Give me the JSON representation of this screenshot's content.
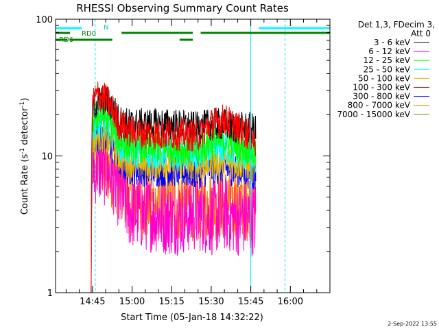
{
  "chart_data": {
    "type": "line",
    "title": "RHESSI Observing Summary Count Rates",
    "xlabel": "Start Time (05-Jan-18 14:32:22)",
    "ylabel_main": "Count Rate (s",
    "ylabel_sup1": "-1",
    "ylabel_mid": " detector",
    "ylabel_sup2": "-1",
    "ylabel_end": ")",
    "yscale": "log",
    "ylim": [
      1,
      100
    ],
    "y_ticks": [
      {
        "value": 1,
        "label": "1"
      },
      {
        "value": 10,
        "label": "10"
      },
      {
        "value": 100,
        "label": "100"
      }
    ],
    "xlim_min": [
      -4,
      100
    ],
    "x_ticks": [
      {
        "value": 10,
        "label": "14:45"
      },
      {
        "value": 25,
        "label": "15:00"
      },
      {
        "value": 40,
        "label": "15:15"
      },
      {
        "value": 55,
        "label": "15:30"
      },
      {
        "value": 70,
        "label": "15:45"
      },
      {
        "value": 85,
        "label": "16:00"
      }
    ],
    "legend_header": [
      "Det 1,3, FDecim 3,",
      "Att 0"
    ],
    "legend_placement": "right",
    "series": [
      {
        "name": "3 - 6 keV",
        "color": "#000000",
        "points": [
          [
            9.5,
            1
          ],
          [
            10,
            22
          ],
          [
            12,
            25
          ],
          [
            15,
            26
          ],
          [
            18,
            22
          ],
          [
            20,
            18
          ],
          [
            24,
            17
          ],
          [
            30,
            17
          ],
          [
            40,
            17
          ],
          [
            50,
            16
          ],
          [
            55,
            17
          ],
          [
            60,
            17
          ],
          [
            65,
            16
          ],
          [
            70,
            16
          ],
          [
            72,
            15
          ]
        ]
      },
      {
        "name": "6 - 12 keV",
        "color": "#ff00cc",
        "points": [
          [
            9.5,
            1
          ],
          [
            10,
            8
          ],
          [
            12,
            8.5
          ],
          [
            15,
            8
          ],
          [
            18,
            7
          ],
          [
            20,
            5.5
          ],
          [
            24,
            4
          ],
          [
            30,
            3.8
          ],
          [
            40,
            3.5
          ],
          [
            50,
            3.8
          ],
          [
            55,
            3.5
          ],
          [
            60,
            3.8
          ],
          [
            65,
            3.5
          ],
          [
            70,
            3.5
          ],
          [
            72,
            3.5
          ]
        ]
      },
      {
        "name": "12 - 25 keV",
        "color": "#00ff00",
        "points": [
          [
            9.5,
            1
          ],
          [
            10,
            18
          ],
          [
            12,
            20
          ],
          [
            15,
            19
          ],
          [
            18,
            16
          ],
          [
            20,
            13
          ],
          [
            24,
            12
          ],
          [
            30,
            11.5
          ],
          [
            40,
            11.5
          ],
          [
            50,
            11
          ],
          [
            55,
            12.5
          ],
          [
            60,
            13
          ],
          [
            65,
            12
          ],
          [
            70,
            11
          ],
          [
            72,
            10
          ]
        ]
      },
      {
        "name": "25 - 50 keV",
        "color": "#00ffff",
        "points": [
          [
            9.5,
            1
          ],
          [
            10,
            16
          ],
          [
            12,
            18
          ],
          [
            15,
            17
          ],
          [
            18,
            14.5
          ],
          [
            20,
            12
          ],
          [
            24,
            11
          ],
          [
            30,
            10.5
          ],
          [
            40,
            10.5
          ],
          [
            50,
            10
          ],
          [
            55,
            11
          ],
          [
            60,
            11.5
          ],
          [
            65,
            10.5
          ],
          [
            70,
            10
          ],
          [
            72,
            9
          ]
        ]
      },
      {
        "name": "50 - 100 keV",
        "color": "#e6b800",
        "points": [
          [
            9.5,
            1
          ],
          [
            10,
            13
          ],
          [
            12,
            14
          ],
          [
            15,
            13.5
          ],
          [
            18,
            11.5
          ],
          [
            20,
            10
          ],
          [
            24,
            9
          ],
          [
            30,
            8.8
          ],
          [
            40,
            8.8
          ],
          [
            50,
            8.5
          ],
          [
            55,
            9
          ],
          [
            60,
            9.2
          ],
          [
            65,
            8.8
          ],
          [
            70,
            8.5
          ],
          [
            72,
            7.8
          ]
        ]
      },
      {
        "name": "100 - 300 keV",
        "color": "#ff0000",
        "points": [
          [
            9.5,
            1
          ],
          [
            10,
            25
          ],
          [
            12,
            28
          ],
          [
            15,
            26
          ],
          [
            18,
            21
          ],
          [
            20,
            17
          ],
          [
            24,
            15
          ],
          [
            30,
            14.5
          ],
          [
            40,
            14.5
          ],
          [
            50,
            14
          ],
          [
            55,
            17
          ],
          [
            60,
            18.5
          ],
          [
            65,
            16
          ],
          [
            70,
            14
          ],
          [
            72,
            12.5
          ]
        ]
      },
      {
        "name": "300 - 800 keV",
        "color": "#0000ff",
        "points": [
          [
            9.5,
            1
          ],
          [
            10,
            13
          ],
          [
            12,
            14
          ],
          [
            15,
            13
          ],
          [
            18,
            11
          ],
          [
            20,
            9
          ],
          [
            24,
            8
          ],
          [
            30,
            7.8
          ],
          [
            40,
            7.8
          ],
          [
            50,
            7.5
          ],
          [
            55,
            8
          ],
          [
            60,
            8.2
          ],
          [
            65,
            7.8
          ],
          [
            70,
            7.5
          ],
          [
            72,
            7
          ]
        ]
      },
      {
        "name": "800 - 7000 keV",
        "color": "#ff8000",
        "points": [
          [
            9.5,
            1
          ],
          [
            10,
            9
          ],
          [
            12,
            9
          ],
          [
            15,
            8.5
          ],
          [
            18,
            7.5
          ],
          [
            20,
            6.5
          ],
          [
            24,
            5
          ],
          [
            30,
            4.5
          ],
          [
            40,
            4.5
          ],
          [
            50,
            4.5
          ],
          [
            55,
            4.5
          ],
          [
            60,
            4.5
          ],
          [
            65,
            4.5
          ],
          [
            70,
            4.5
          ],
          [
            72,
            4
          ]
        ]
      },
      {
        "name": "7000 - 15000 keV",
        "color": "#808000",
        "points": []
      }
    ],
    "flag_labels": {
      "n": "N",
      "rd0": "RD0",
      "rd6": "RD6"
    },
    "flags": {
      "n_segments": [
        [
          -4,
          6
        ],
        [
          73,
          100
        ]
      ],
      "rd0_segments": [
        [
          -4,
          1.5
        ],
        [
          21,
          43
        ],
        [
          43,
          48
        ],
        [
          51,
          100
        ]
      ],
      "rd6_segments": [
        [
          -4,
          0.5
        ],
        [
          1.5,
          17.5
        ],
        [
          43,
          48
        ]
      ]
    },
    "vlines_cyan_dashed": [
      11,
      83
    ],
    "vlines_cyan_solid": [
      70
    ]
  },
  "footer_date": "2-Sep-2022 13:55"
}
